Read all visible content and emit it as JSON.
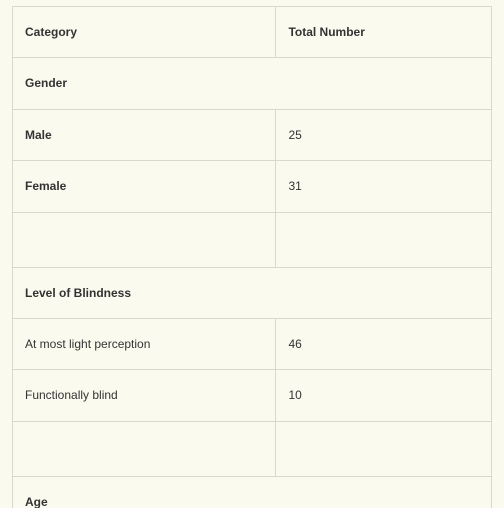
{
  "table": {
    "type": "table",
    "background_color": "#fafaef",
    "border_color": "#d8d8cf",
    "text_color": "#333333",
    "font_family": "Verdana",
    "font_size_pt": 9,
    "columns": [
      "Category",
      "Total Number"
    ],
    "column_widths_pct": [
      55,
      45
    ],
    "sections": [
      {
        "title": "Gender",
        "label_bold": true,
        "rows": [
          {
            "label": "Male",
            "value": "25"
          },
          {
            "label": "Female",
            "value": "31"
          }
        ],
        "trailing_empty_row": true
      },
      {
        "title": "Level of Blindness",
        "label_bold": false,
        "rows": [
          {
            "label": "At most light perception",
            "value": "46"
          },
          {
            "label": "Functionally blind",
            "value": "10"
          }
        ],
        "trailing_empty_row": true
      },
      {
        "title": "Age",
        "label_bold": false,
        "rows": [],
        "trailing_empty_row": false
      }
    ]
  }
}
